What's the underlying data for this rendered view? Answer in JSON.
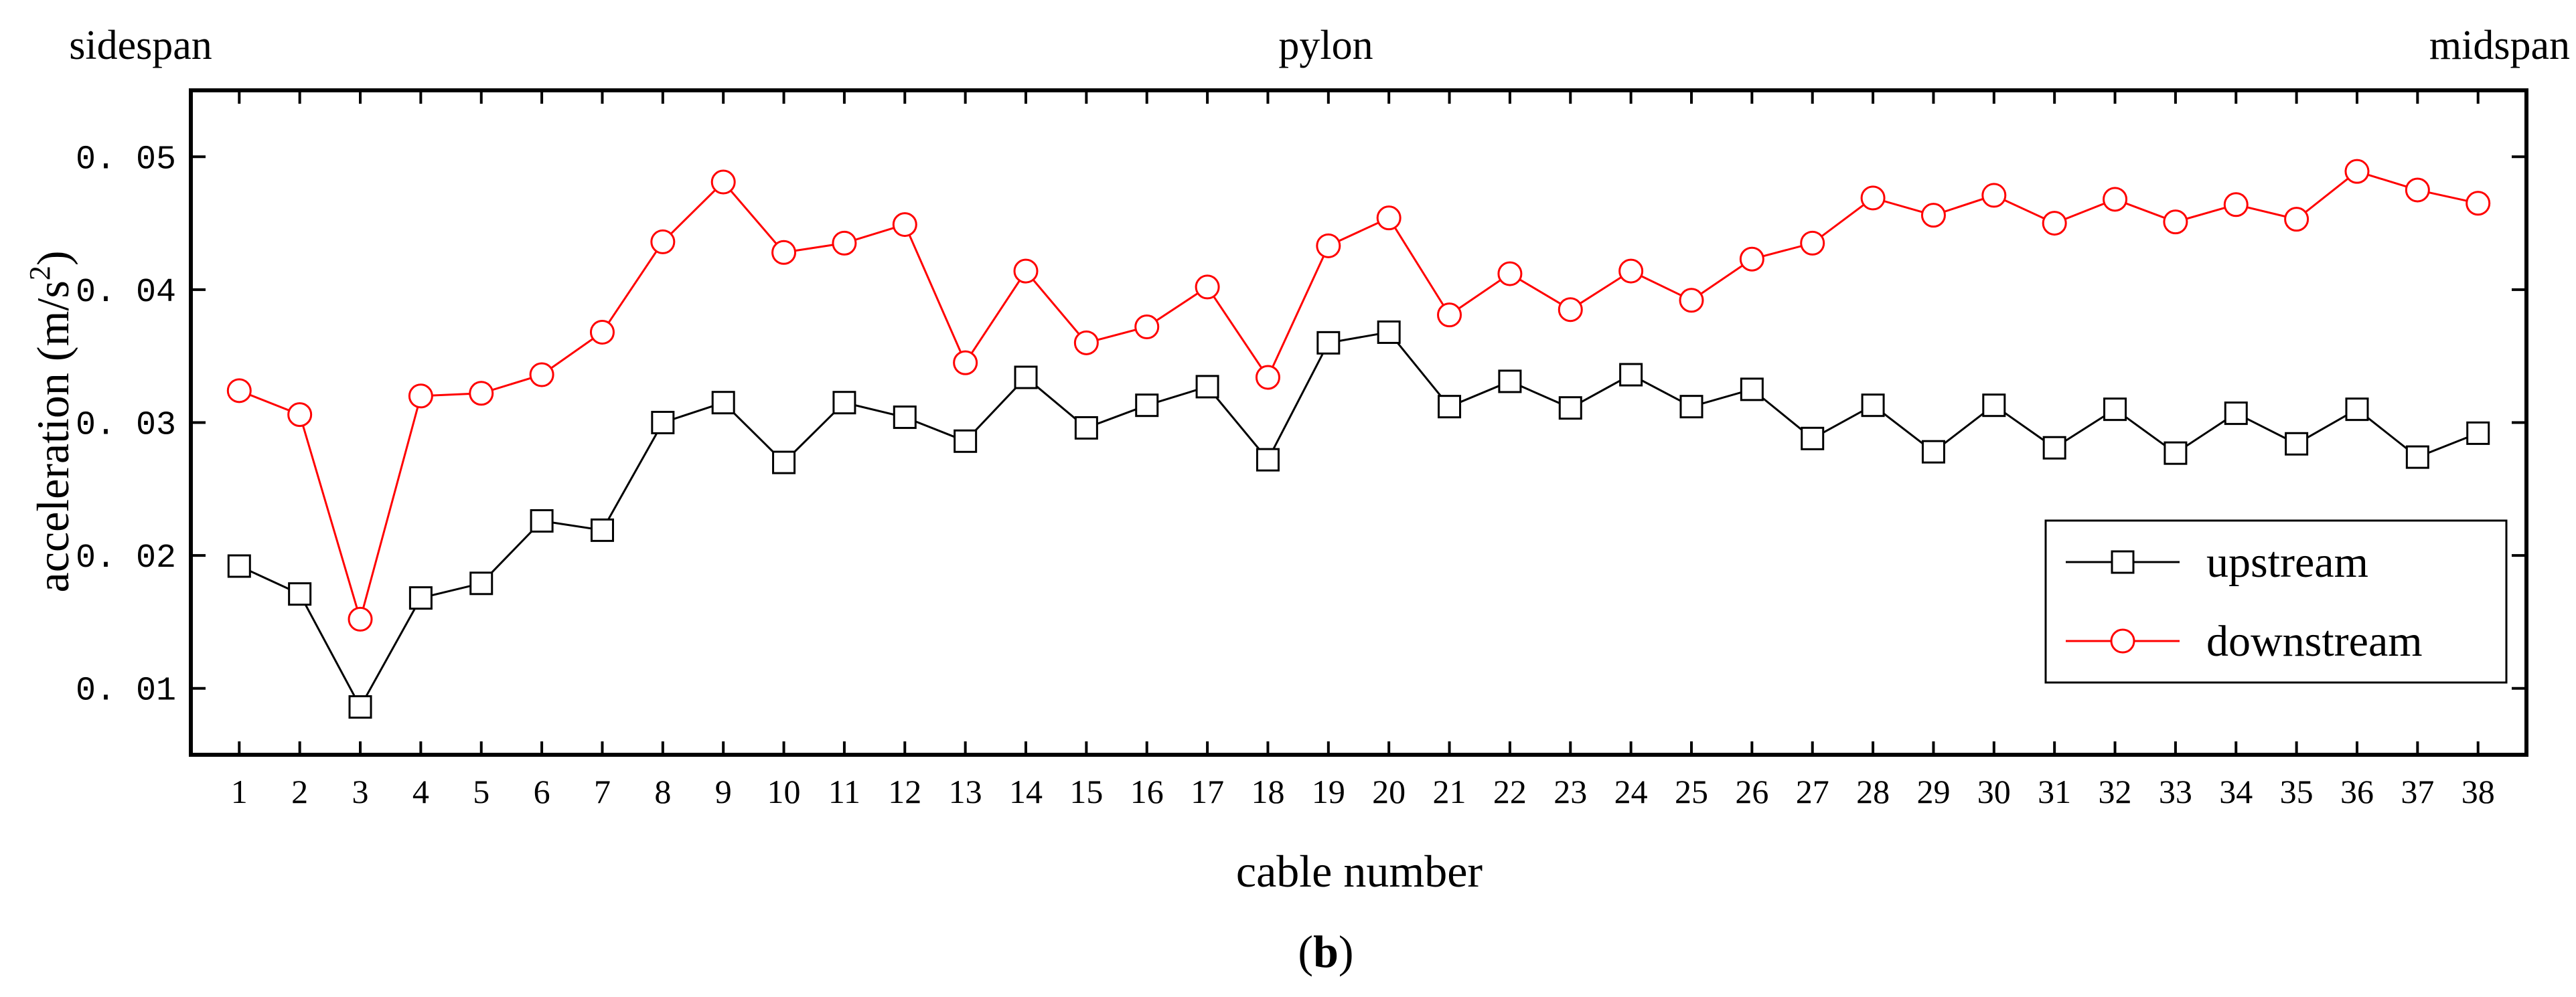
{
  "chart_data": {
    "type": "line",
    "title": "",
    "top_labels": {
      "left": "sidespan",
      "center": "pylon",
      "right": "midspan"
    },
    "xlabel": "cable number",
    "ylabel_main": "acceleration (m/s",
    "ylabel_sup": "2",
    "ylabel_tail": ")",
    "caption_open": "(",
    "caption_letter": "b",
    "caption_close": ")",
    "x": [
      1,
      2,
      3,
      4,
      5,
      6,
      7,
      8,
      9,
      10,
      11,
      12,
      13,
      14,
      15,
      16,
      17,
      18,
      19,
      20,
      21,
      22,
      23,
      24,
      25,
      26,
      27,
      28,
      29,
      30,
      31,
      32,
      33,
      34,
      35,
      36,
      37,
      38
    ],
    "xlim": [
      0.2,
      38.8
    ],
    "ylim": [
      0.005,
      0.055
    ],
    "yticks": [
      0.01,
      0.02,
      0.03,
      0.04,
      0.05
    ],
    "ytick_labels": [
      "0. 01",
      "0. 02",
      "0. 03",
      "0. 04",
      "0. 05"
    ],
    "grid": false,
    "legend_position": "lower-right",
    "series": [
      {
        "name": "upstream",
        "color": "#000000",
        "marker": "square",
        "values": [
          0.0192,
          0.0171,
          0.0086,
          0.0168,
          0.0179,
          0.0226,
          0.0219,
          0.03,
          0.0315,
          0.027,
          0.0315,
          0.0304,
          0.0286,
          0.0334,
          0.0296,
          0.0313,
          0.0327,
          0.0272,
          0.036,
          0.0368,
          0.0312,
          0.0331,
          0.0311,
          0.0336,
          0.0312,
          0.0325,
          0.0288,
          0.0313,
          0.0278,
          0.0313,
          0.0281,
          0.031,
          0.0277,
          0.0307,
          0.0284,
          0.031,
          0.0274,
          0.0292
        ]
      },
      {
        "name": "downstream",
        "color": "#ff0000",
        "marker": "circle",
        "values": [
          0.0324,
          0.0306,
          0.0152,
          0.032,
          0.0322,
          0.0336,
          0.0368,
          0.0436,
          0.0481,
          0.0428,
          0.0435,
          0.0449,
          0.0345,
          0.0414,
          0.036,
          0.0372,
          0.0402,
          0.0334,
          0.0433,
          0.0454,
          0.0381,
          0.0412,
          0.0385,
          0.0414,
          0.0392,
          0.0423,
          0.0435,
          0.0469,
          0.0456,
          0.0471,
          0.045,
          0.0468,
          0.0451,
          0.0464,
          0.0453,
          0.0489,
          0.0475,
          0.0465
        ]
      }
    ]
  }
}
